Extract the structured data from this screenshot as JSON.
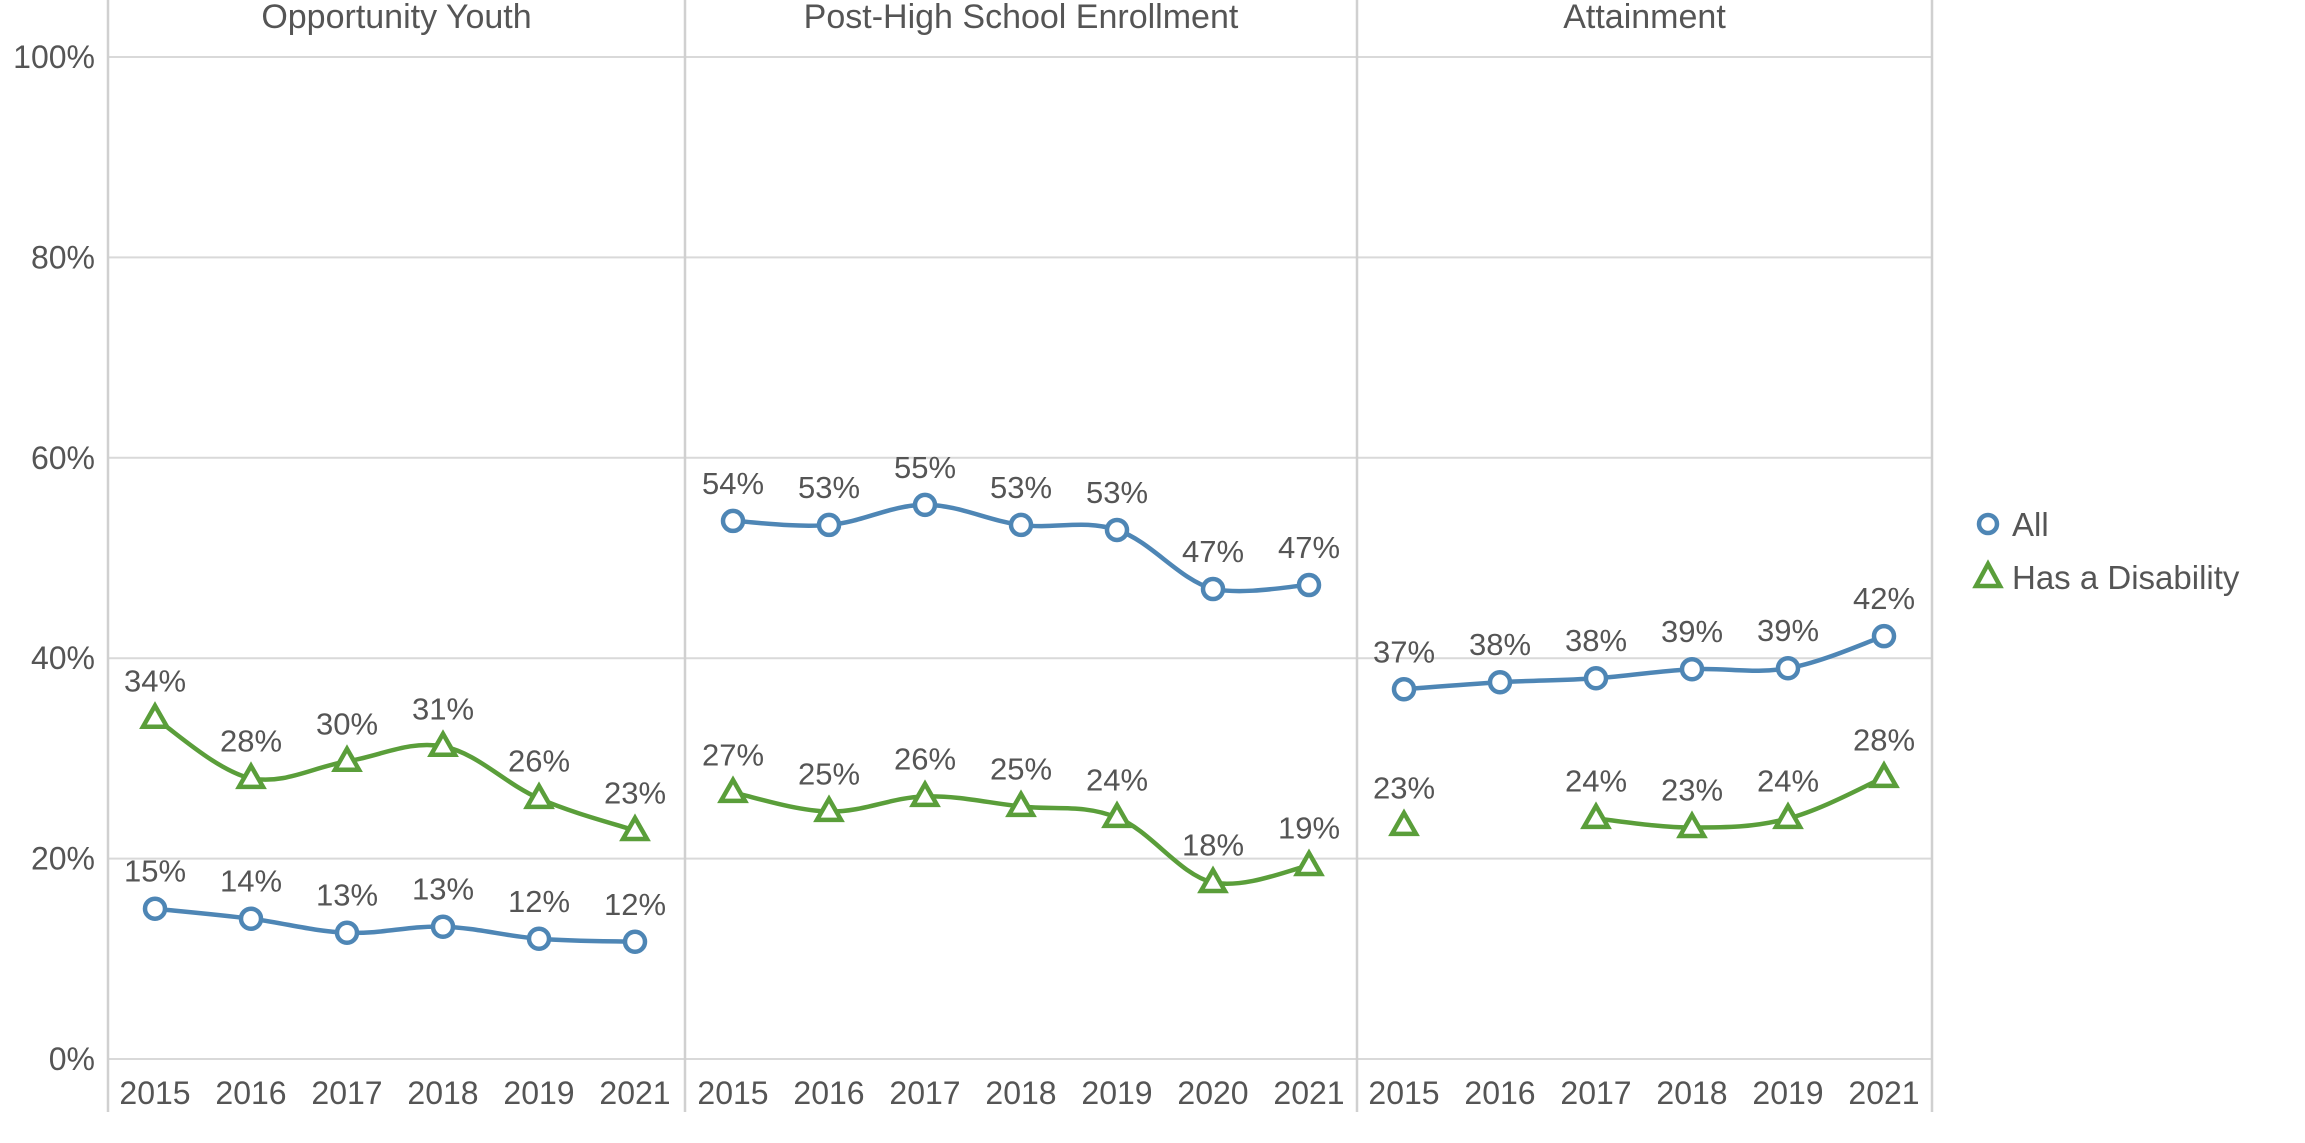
{
  "colors": {
    "all": "#4e86b5",
    "disability": "#5a9e3a",
    "grid": "#d9d9d9",
    "text": "#555555"
  },
  "legend": {
    "items": [
      {
        "label": "All",
        "icon": "circle-marker-icon",
        "series": "all"
      },
      {
        "label": "Has a Disability",
        "icon": "triangle-marker-icon",
        "series": "disability"
      }
    ]
  },
  "chart_data": [
    {
      "type": "line",
      "title": "Opportunity Youth",
      "categories": [
        "2015",
        "2016",
        "2017",
        "2018",
        "2019",
        "2021"
      ],
      "ylim": [
        0,
        100
      ],
      "yticks": [
        "0%",
        "20%",
        "40%",
        "60%",
        "80%",
        "100%"
      ],
      "series": [
        {
          "name": "All",
          "key": "all",
          "values": [
            15,
            14,
            12.6,
            13.2,
            12,
            11.7
          ],
          "labels": [
            "15%",
            "14%",
            "13%",
            "13%",
            "12%",
            "12%"
          ]
        },
        {
          "name": "Has a Disability",
          "key": "disability",
          "values": [
            34,
            28,
            29.7,
            31.2,
            26,
            22.8
          ],
          "labels": [
            "34%",
            "28%",
            "30%",
            "31%",
            "26%",
            "23%"
          ]
        }
      ]
    },
    {
      "type": "line",
      "title": "Post-High School Enrollment",
      "categories": [
        "2015",
        "2016",
        "2017",
        "2018",
        "2019",
        "2020",
        "2021"
      ],
      "ylim": [
        0,
        100
      ],
      "series": [
        {
          "name": "All",
          "key": "all",
          "values": [
            53.7,
            53.3,
            55.3,
            53.3,
            52.8,
            46.9,
            47.3
          ],
          "labels": [
            "54%",
            "53%",
            "55%",
            "53%",
            "53%",
            "47%",
            "47%"
          ]
        },
        {
          "name": "Has a Disability",
          "key": "disability",
          "values": [
            26.6,
            24.7,
            26.2,
            25.2,
            24.1,
            17.6,
            19.3
          ],
          "labels": [
            "27%",
            "25%",
            "26%",
            "25%",
            "24%",
            "18%",
            "19%"
          ]
        }
      ]
    },
    {
      "type": "line",
      "title": "Attainment",
      "categories": [
        "2015",
        "2016",
        "2017",
        "2018",
        "2019",
        "2021"
      ],
      "ylim": [
        0,
        100
      ],
      "series": [
        {
          "name": "All",
          "key": "all",
          "values": [
            36.9,
            37.6,
            38,
            38.9,
            39,
            42.2
          ],
          "labels": [
            "37%",
            "38%",
            "38%",
            "39%",
            "39%",
            "42%"
          ]
        },
        {
          "name": "Has a Disability",
          "key": "disability",
          "values": [
            23.3,
            null,
            24,
            23.1,
            24,
            28.1
          ],
          "labels": [
            "23%",
            null,
            "24%",
            "23%",
            "24%",
            "28%"
          ]
        }
      ]
    }
  ]
}
